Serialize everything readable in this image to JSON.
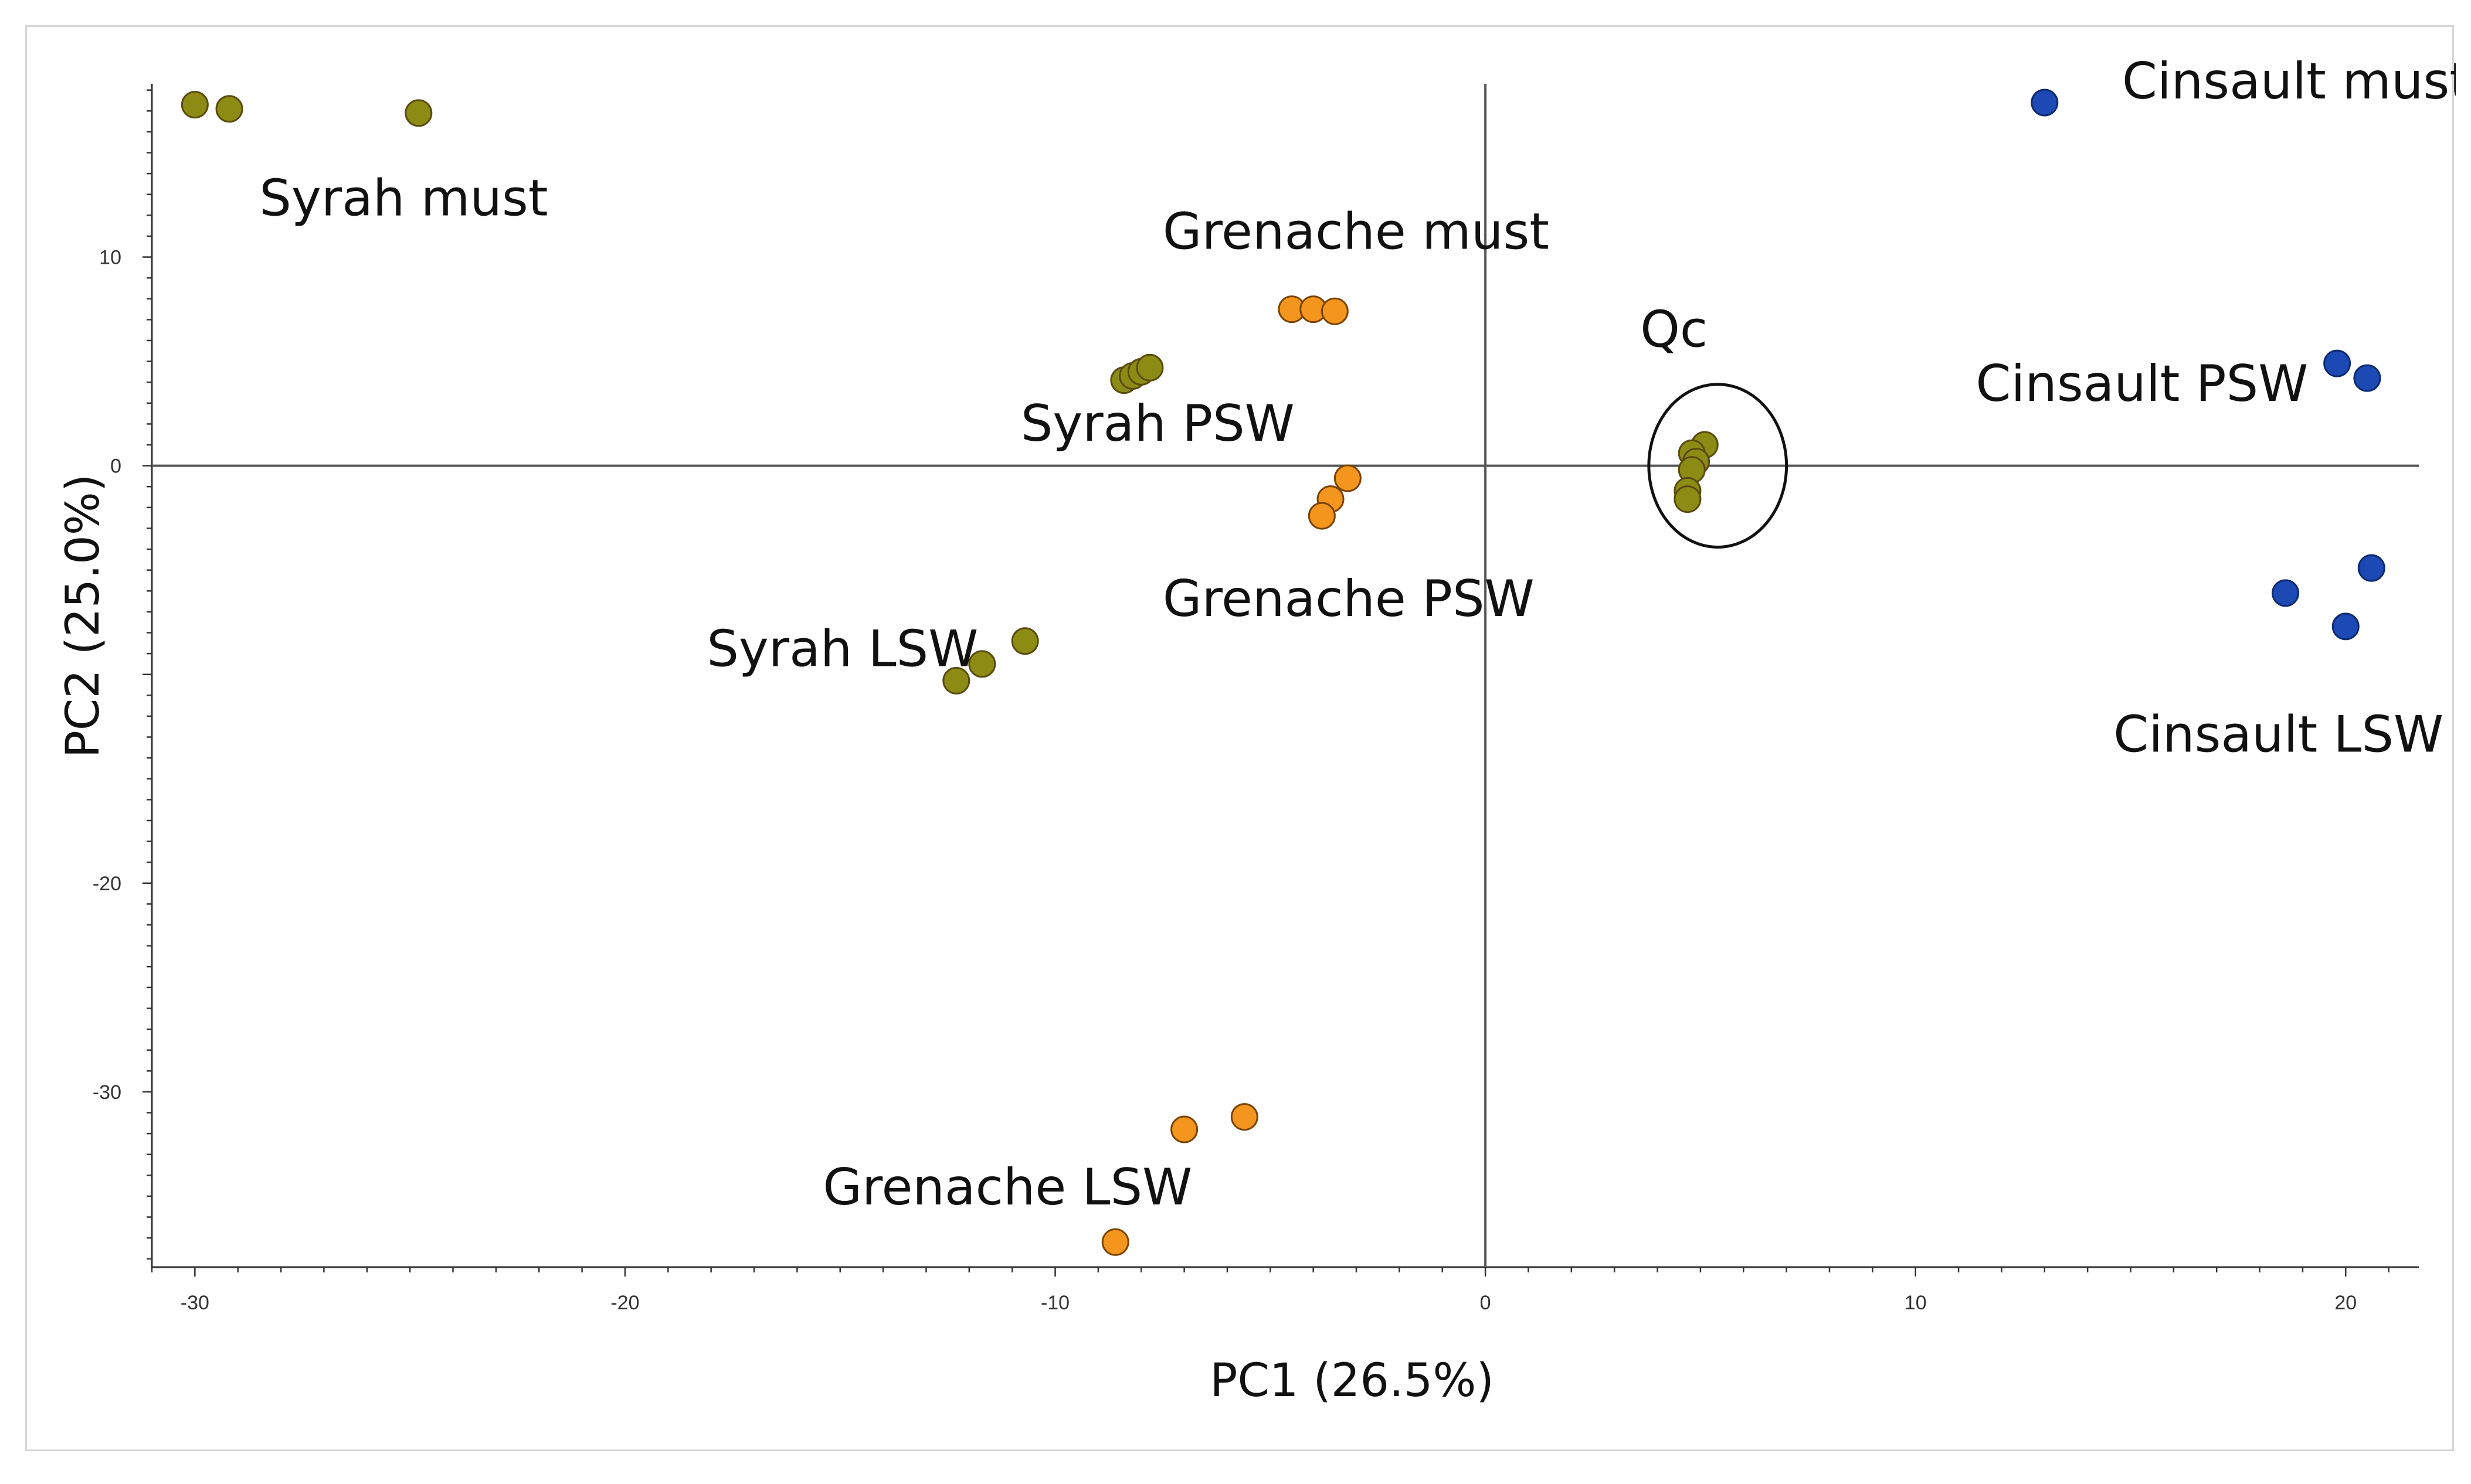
{
  "chart_data": {
    "type": "scatter",
    "title": "",
    "xlabel": "PC1 (26.5%)",
    "ylabel": "PC2 (25.0%)",
    "xlim": [
      -31,
      21.7
    ],
    "ylim": [
      -38.4,
      18.3
    ],
    "xticks": [
      -30,
      -20,
      -10,
      0,
      10,
      20
    ],
    "yticks": [
      10,
      0,
      -20,
      -30
    ],
    "ytick_minor_step": 1,
    "xtick_minor_step": 1,
    "reference_lines": {
      "x": 0,
      "y": 0
    },
    "colors": {
      "syrah": "#8c8c14",
      "grenache": "#f4961e",
      "cinsault": "#1c49b3",
      "marker_edge": "#5a4a10"
    },
    "series": [
      {
        "name": "Syrah must",
        "variety": "syrah",
        "points": [
          [
            -30,
            17.3
          ],
          [
            -29.2,
            17.1
          ],
          [
            -24.8,
            16.9
          ]
        ]
      },
      {
        "name": "Syrah PSW",
        "variety": "syrah",
        "points": [
          [
            -8.4,
            4.1
          ],
          [
            -8.2,
            4.3
          ],
          [
            -8.0,
            4.5
          ],
          [
            -7.8,
            4.7
          ]
        ]
      },
      {
        "name": "Syrah LSW",
        "variety": "syrah",
        "points": [
          [
            -12.3,
            -10.3
          ],
          [
            -11.7,
            -9.5
          ],
          [
            -10.7,
            -8.4
          ]
        ]
      },
      {
        "name": "Grenache must",
        "variety": "grenache",
        "points": [
          [
            -4.5,
            7.5
          ],
          [
            -4.0,
            7.5
          ],
          [
            -3.5,
            7.4
          ]
        ]
      },
      {
        "name": "Grenache PSW",
        "variety": "grenache",
        "points": [
          [
            -3.2,
            -0.6
          ],
          [
            -3.6,
            -1.6
          ],
          [
            -3.8,
            -2.4
          ]
        ]
      },
      {
        "name": "Grenache LSW",
        "variety": "grenache",
        "points": [
          [
            -5.6,
            -31.2
          ],
          [
            -7.0,
            -31.8
          ],
          [
            -8.6,
            -37.2
          ]
        ]
      },
      {
        "name": "Cinsault must",
        "variety": "cinsault",
        "points": [
          [
            13.0,
            17.4
          ]
        ]
      },
      {
        "name": "Cinsault PSW",
        "variety": "cinsault",
        "points": [
          [
            19.8,
            4.9
          ],
          [
            20.5,
            4.2
          ]
        ]
      },
      {
        "name": "Cinsault LSW",
        "variety": "cinsault",
        "points": [
          [
            18.6,
            -6.1
          ],
          [
            20.0,
            -7.7
          ],
          [
            20.6,
            -4.9
          ]
        ]
      },
      {
        "name": "Qc",
        "variety": "syrah",
        "points": [
          [
            5.1,
            1.0
          ],
          [
            4.8,
            0.6
          ],
          [
            4.9,
            0.2
          ],
          [
            4.8,
            -0.2
          ],
          [
            4.7,
            -1.2
          ],
          [
            4.7,
            -1.6
          ]
        ]
      }
    ],
    "qc_ellipse": {
      "cx": 5.4,
      "cy": 0.0,
      "rx": 1.6,
      "ry": 3.9
    },
    "annotations": [
      {
        "text": "Syrah must",
        "x": -28.5,
        "y": 12.0,
        "anchor": "start"
      },
      {
        "text": "Grenache must",
        "x": -7.5,
        "y": 10.4,
        "anchor": "start"
      },
      {
        "text": "Syrah PSW",
        "x": -10.8,
        "y": 1.2,
        "anchor": "start"
      },
      {
        "text": "Grenache PSW",
        "x": -7.5,
        "y": -7.2,
        "anchor": "start"
      },
      {
        "text": "Syrah LSW",
        "x": -18.1,
        "y": -9.6,
        "anchor": "start"
      },
      {
        "text": "Grenache LSW",
        "x": -15.4,
        "y": -35.4,
        "anchor": "start"
      },
      {
        "text": "Qc",
        "x": 3.6,
        "y": 5.7,
        "anchor": "start"
      },
      {
        "text": "Cinsault PSW",
        "x": 11.4,
        "y": 3.1,
        "anchor": "start"
      },
      {
        "text": "Cinsault LSW",
        "x": 14.6,
        "y": -13.7,
        "anchor": "start"
      },
      {
        "text": "Cinsault must",
        "x": 14.8,
        "y": 17.6,
        "anchor": "start"
      }
    ]
  }
}
